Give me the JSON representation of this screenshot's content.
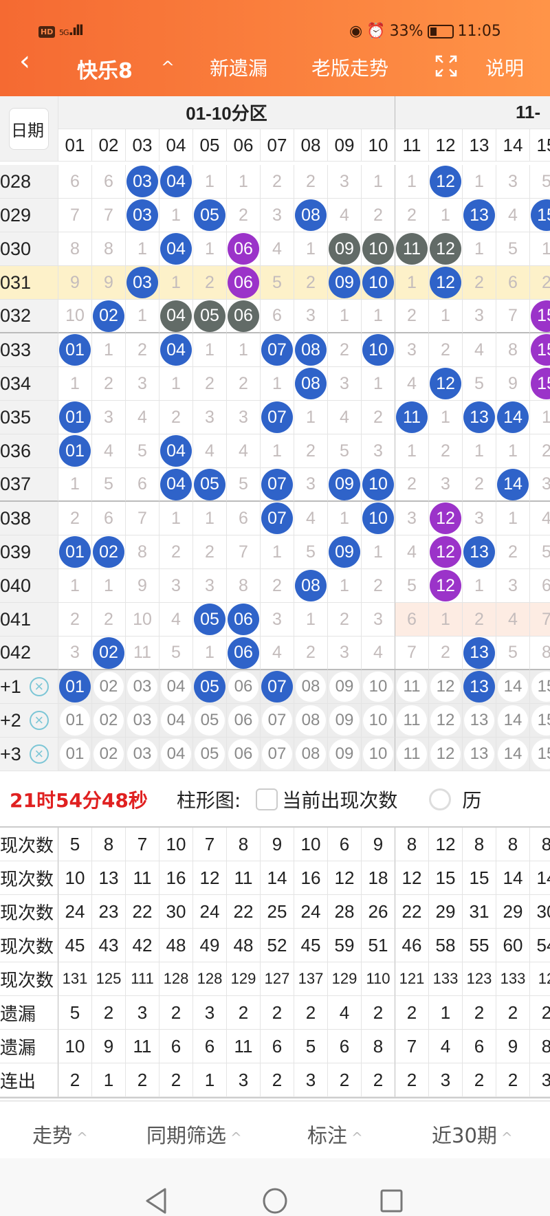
{
  "status_bar": {
    "hd": "HD",
    "signal": "5G",
    "battery": "33%",
    "battery_level": 0.33,
    "time": "11:05"
  },
  "header": {
    "back": "‹",
    "title": "快乐8",
    "collapse": "^",
    "tab_new_missing": "新遗漏",
    "tab_old_trend": "老版走势",
    "explain": "说明"
  },
  "grid": {
    "date_label": "日期",
    "zone1": "01-10分区",
    "zone2": "11-",
    "columns": [
      "01",
      "02",
      "03",
      "04",
      "05",
      "06",
      "07",
      "08",
      "09",
      "10",
      "11",
      "12",
      "13",
      "14",
      "15"
    ],
    "colors": {
      "b": "#2f63c9",
      "p": "#9b33c9",
      "g": "#626b67",
      "highlight": "#fdf1c9",
      "pink": "#fdece3"
    },
    "rows": [
      {
        "issue": "028",
        "cells": [
          6,
          6,
          {
            "b": "03"
          },
          {
            "b": "04"
          },
          1,
          1,
          2,
          2,
          3,
          1,
          1,
          {
            "b": "12"
          },
          1,
          3,
          5
        ]
      },
      {
        "issue": "029",
        "cells": [
          7,
          7,
          {
            "b": "03"
          },
          1,
          {
            "b": "05"
          },
          2,
          3,
          {
            "b": "08"
          },
          4,
          2,
          2,
          1,
          {
            "b": "13"
          },
          4,
          {
            "b": "15"
          }
        ]
      },
      {
        "issue": "030",
        "cells": [
          8,
          8,
          1,
          {
            "b": "04"
          },
          1,
          {
            "p": "06"
          },
          4,
          1,
          {
            "g": "09"
          },
          {
            "g": "10"
          },
          {
            "g": "11"
          },
          {
            "g": "12"
          },
          1,
          5,
          1
        ]
      },
      {
        "issue": "031",
        "highlight": true,
        "cells": [
          9,
          9,
          {
            "b": "03"
          },
          1,
          2,
          {
            "p": "06"
          },
          5,
          2,
          {
            "b": "09"
          },
          {
            "b": "10"
          },
          1,
          {
            "b": "12"
          },
          2,
          6,
          2
        ]
      },
      {
        "issue": "032",
        "cells": [
          10,
          {
            "b": "02"
          },
          1,
          {
            "g": "04"
          },
          {
            "g": "05"
          },
          {
            "g": "06"
          },
          6,
          3,
          1,
          1,
          2,
          1,
          3,
          7,
          {
            "p": "15"
          }
        ]
      },
      {
        "issue": "033",
        "cells": [
          {
            "b": "01"
          },
          1,
          2,
          {
            "b": "04"
          },
          1,
          1,
          {
            "b": "07"
          },
          {
            "b": "08"
          },
          2,
          {
            "b": "10"
          },
          3,
          2,
          4,
          8,
          {
            "p": "15"
          }
        ]
      },
      {
        "issue": "034",
        "cells": [
          1,
          2,
          3,
          1,
          2,
          2,
          1,
          {
            "b": "08"
          },
          3,
          1,
          4,
          {
            "b": "12"
          },
          5,
          9,
          {
            "p": "15"
          }
        ]
      },
      {
        "issue": "035",
        "cells": [
          {
            "b": "01"
          },
          3,
          4,
          2,
          3,
          3,
          {
            "b": "07"
          },
          1,
          4,
          2,
          {
            "b": "11"
          },
          1,
          {
            "b": "13"
          },
          {
            "b": "14"
          },
          1
        ]
      },
      {
        "issue": "036",
        "cells": [
          {
            "b": "01"
          },
          4,
          5,
          {
            "b": "04"
          },
          4,
          4,
          1,
          2,
          5,
          3,
          1,
          2,
          1,
          1,
          2
        ]
      },
      {
        "issue": "037",
        "cells": [
          1,
          5,
          6,
          {
            "b": "04"
          },
          {
            "b": "05"
          },
          5,
          {
            "b": "07"
          },
          3,
          {
            "b": "09"
          },
          {
            "b": "10"
          },
          2,
          3,
          2,
          {
            "b": "14"
          },
          3
        ]
      },
      {
        "issue": "038",
        "cells": [
          2,
          6,
          7,
          1,
          1,
          6,
          {
            "b": "07"
          },
          4,
          1,
          {
            "b": "10"
          },
          3,
          {
            "p": "12"
          },
          3,
          1,
          4
        ]
      },
      {
        "issue": "039",
        "cells": [
          {
            "b": "01"
          },
          {
            "b": "02"
          },
          8,
          2,
          2,
          7,
          1,
          5,
          {
            "b": "09"
          },
          1,
          4,
          {
            "p": "12"
          },
          {
            "b": "13"
          },
          2,
          5
        ]
      },
      {
        "issue": "040",
        "cells": [
          1,
          1,
          9,
          3,
          3,
          8,
          2,
          {
            "b": "08"
          },
          1,
          2,
          5,
          {
            "p": "12"
          },
          1,
          3,
          6
        ]
      },
      {
        "issue": "041",
        "pink_from": 10,
        "cells": [
          2,
          2,
          10,
          4,
          {
            "b": "05"
          },
          {
            "b": "06"
          },
          3,
          1,
          2,
          3,
          6,
          1,
          2,
          4,
          7
        ]
      },
      {
        "issue": "042",
        "cells": [
          3,
          {
            "b": "02"
          },
          11,
          5,
          1,
          {
            "b": "06"
          },
          4,
          2,
          3,
          4,
          7,
          2,
          {
            "b": "13"
          },
          5,
          8
        ]
      }
    ],
    "predict_rows": [
      {
        "label": "+1",
        "selected": [
          "01",
          "05",
          "07",
          "13"
        ]
      },
      {
        "label": "+2",
        "selected": []
      },
      {
        "label": "+3",
        "selected": []
      }
    ]
  },
  "toolbar": {
    "countdown": "21时54分48秒",
    "bar_chart_label": "柱形图:",
    "current_count_label": "当前出现次数",
    "current_count_checked": false,
    "history_label": "历"
  },
  "stats": [
    {
      "label": "现次数",
      "values": [
        5,
        8,
        7,
        10,
        7,
        8,
        9,
        10,
        6,
        9,
        8,
        12,
        8,
        8,
        8
      ]
    },
    {
      "label": "现次数",
      "values": [
        10,
        13,
        11,
        16,
        12,
        11,
        14,
        16,
        12,
        18,
        12,
        15,
        15,
        14,
        14
      ]
    },
    {
      "label": "现次数",
      "values": [
        24,
        23,
        22,
        30,
        24,
        22,
        25,
        24,
        28,
        26,
        22,
        29,
        31,
        29,
        30
      ]
    },
    {
      "label": "现次数",
      "values": [
        45,
        43,
        42,
        48,
        49,
        48,
        52,
        45,
        59,
        51,
        46,
        58,
        55,
        60,
        54
      ]
    },
    {
      "label": "现次数",
      "values": [
        131,
        125,
        111,
        128,
        128,
        129,
        127,
        137,
        129,
        110,
        121,
        133,
        123,
        133,
        12
      ]
    },
    {
      "label": "遗漏",
      "values": [
        5,
        2,
        3,
        2,
        3,
        2,
        2,
        2,
        4,
        2,
        2,
        1,
        2,
        2,
        2
      ]
    },
    {
      "label": "遗漏",
      "values": [
        10,
        9,
        11,
        6,
        6,
        11,
        6,
        5,
        6,
        8,
        7,
        4,
        6,
        9,
        8
      ]
    },
    {
      "label": "连出",
      "values": [
        2,
        1,
        2,
        2,
        1,
        3,
        2,
        3,
        2,
        2,
        2,
        3,
        2,
        2,
        3
      ]
    }
  ],
  "bottom_tabs": [
    {
      "label": "走势"
    },
    {
      "label": "同期筛选"
    },
    {
      "label": "标注"
    },
    {
      "label": "近30期"
    }
  ],
  "chevron": "^"
}
